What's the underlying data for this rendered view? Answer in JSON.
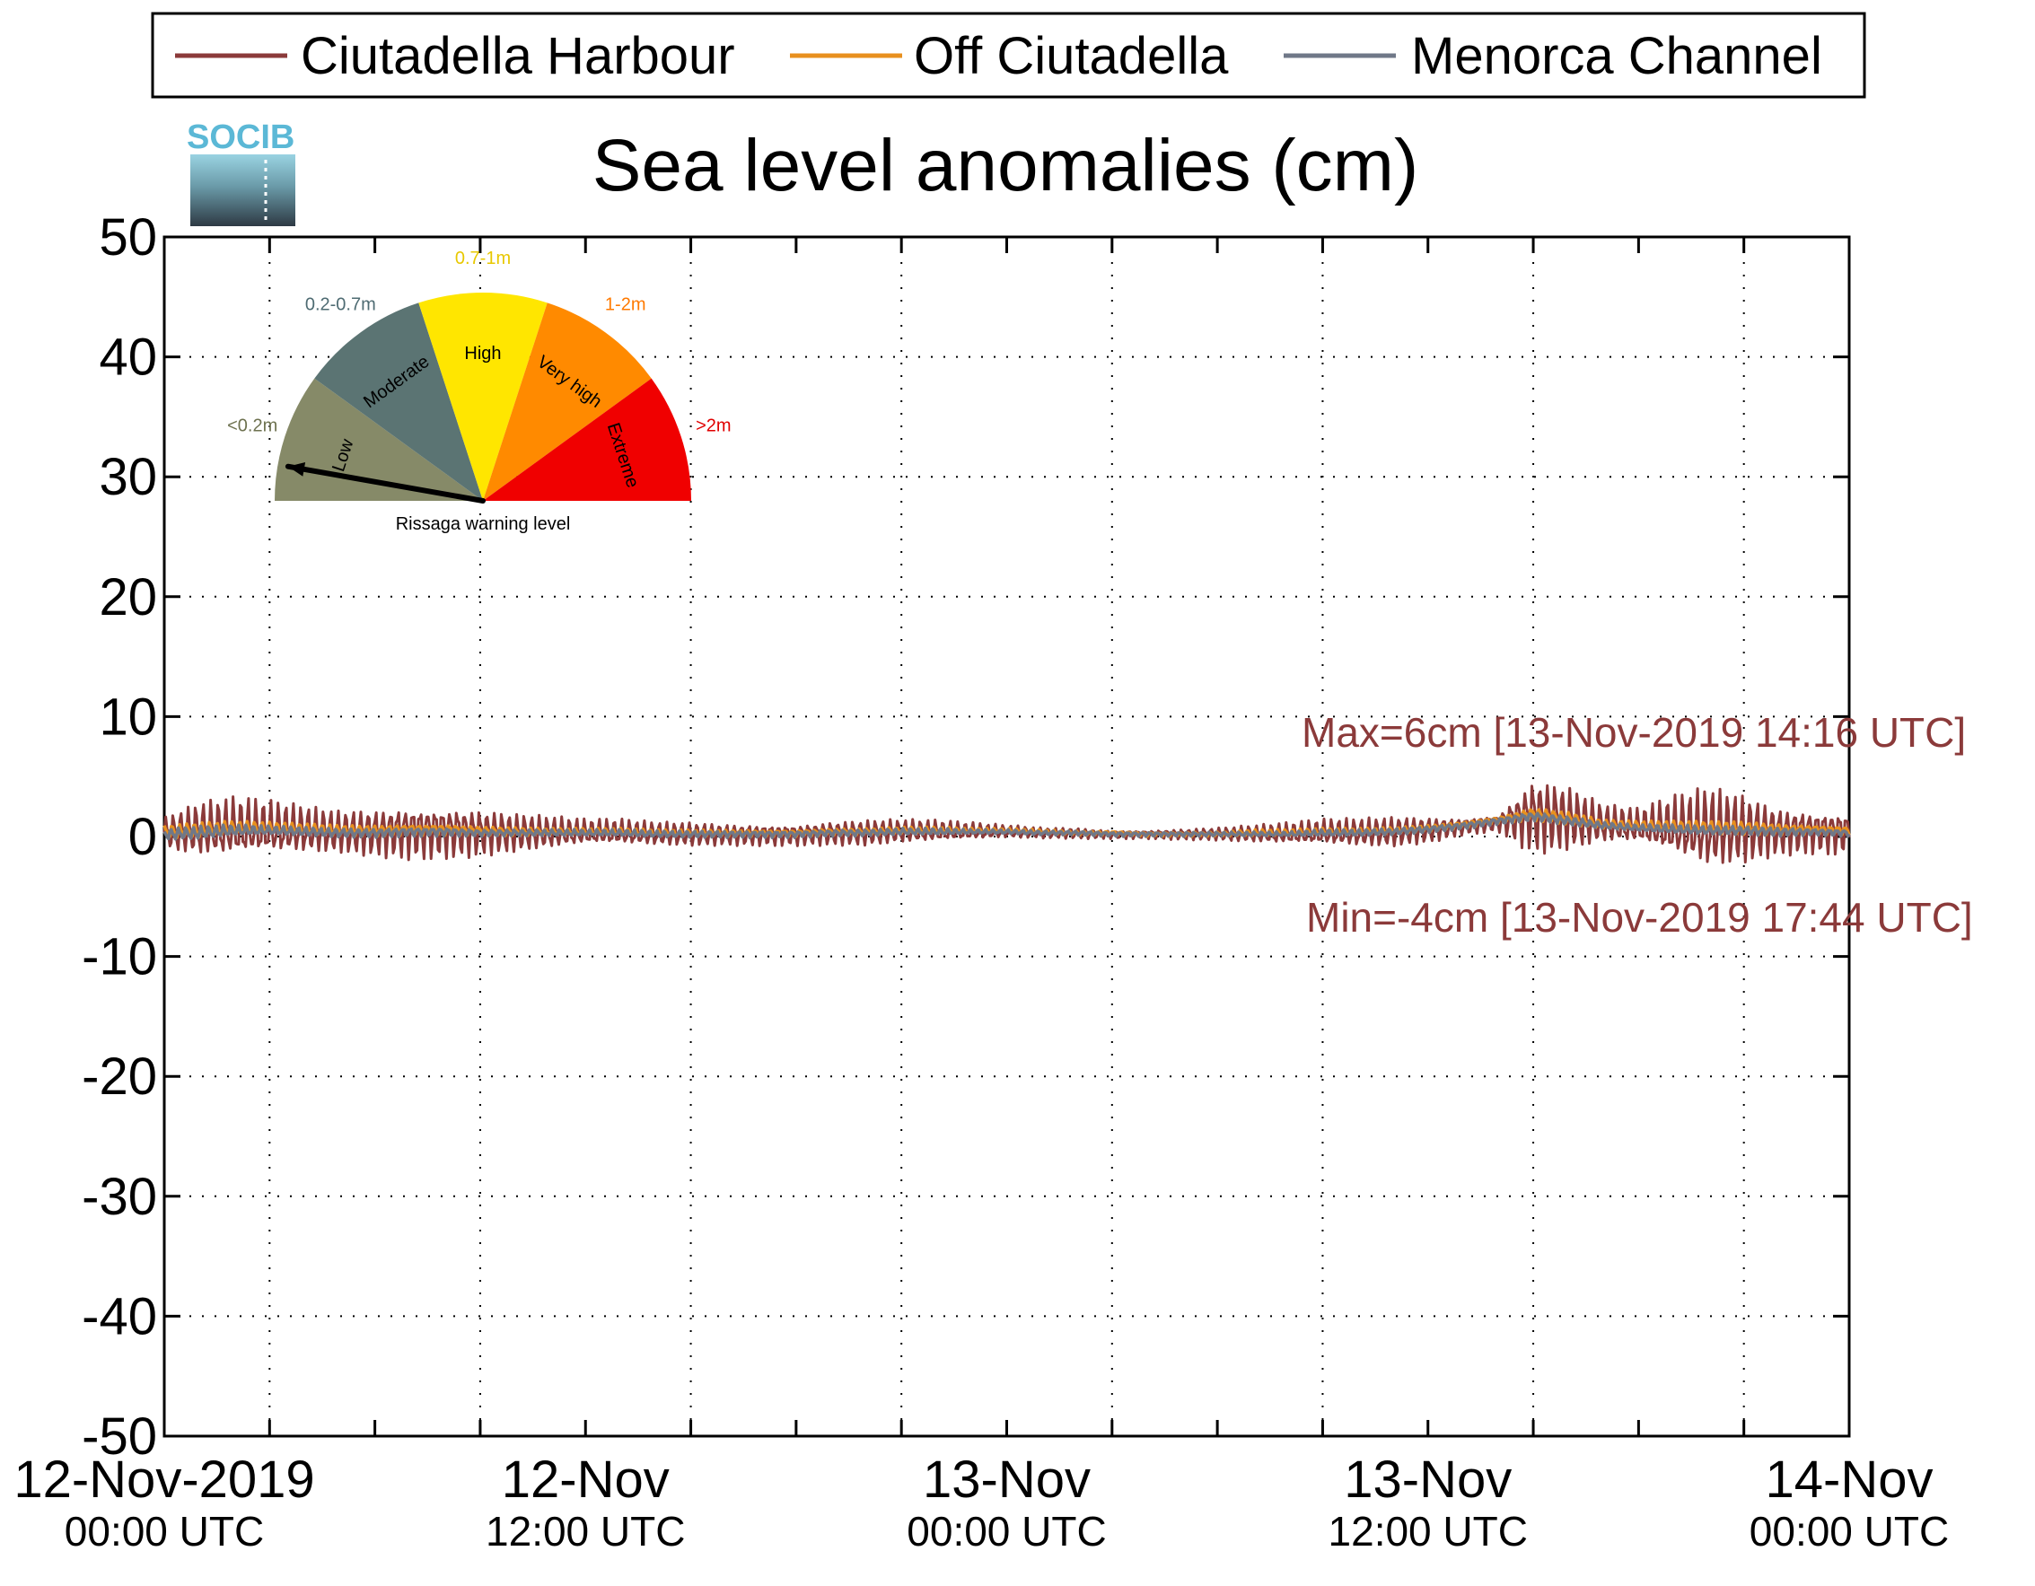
{
  "title": "Sea level anomalies (cm)",
  "legend": {
    "items": [
      {
        "label": "Ciutadella Harbour",
        "color": "#8B3A3A"
      },
      {
        "label": "Off Ciutadella",
        "color": "#E8901E"
      },
      {
        "label": "Menorca Channel",
        "color": "#707888"
      }
    ]
  },
  "logo": {
    "text": "SOCIB"
  },
  "gauge": {
    "caption": "Rissaga warning level",
    "current_level": "Low",
    "segments": [
      {
        "name": "Low",
        "range": "<0.2m",
        "color": "#868A68",
        "label_color": "#6E7250"
      },
      {
        "name": "Moderate",
        "range": "0.2-0.7m",
        "color": "#5B7473",
        "label_color": "#4E6B72"
      },
      {
        "name": "High",
        "range": "0.7-1m",
        "color": "#FFE600",
        "label_color": "#E8C800"
      },
      {
        "name": "Very high",
        "range": "1-2m",
        "color": "#FF8A00",
        "label_color": "#FF7A00"
      },
      {
        "name": "Extreme",
        "range": ">2m",
        "color": "#F00000",
        "label_color": "#E00000"
      }
    ]
  },
  "annotations": {
    "max": "Max=6cm [13-Nov-2019 14:16 UTC]",
    "min": "Min=-4cm [13-Nov-2019 17:44 UTC]"
  },
  "chart_data": {
    "type": "line",
    "title": "Sea level anomalies (cm)",
    "ylim": [
      -50,
      50
    ],
    "xlim_hours": [
      0,
      48
    ],
    "grid": true,
    "legend_position": "top",
    "y_ticks": [
      "50",
      "40",
      "30",
      "20",
      "10",
      "0",
      "-10",
      "-20",
      "-30",
      "-40",
      "-50"
    ],
    "x_ticks": [
      {
        "line1": "12-Nov-2019",
        "line2": "00:00 UTC"
      },
      {
        "line1": "12-Nov",
        "line2": "12:00 UTC"
      },
      {
        "line1": "13-Nov",
        "line2": "00:00 UTC"
      },
      {
        "line1": "13-Nov",
        "line2": "12:00 UTC"
      },
      {
        "line1": "14-Nov",
        "line2": "00:00 UTC"
      }
    ],
    "series": [
      {
        "name": "Ciutadella Harbour",
        "color": "#8B3A3A",
        "mean_hourly": [
          0.3,
          0.5,
          0.6,
          0.6,
          0.5,
          0.4,
          0.4,
          0.5,
          0.5,
          0.4,
          0.3,
          0.3,
          0.3,
          0.3,
          0.2,
          0.2,
          0.2,
          0.2,
          0.2,
          0.3,
          0.3,
          0.4,
          0.4,
          0.4,
          0.4,
          0.3,
          0.3,
          0.2,
          0.2,
          0.2,
          0.2,
          0.2,
          0.2,
          0.3,
          0.3,
          0.4,
          0.6,
          0.9,
          1.2,
          1.8,
          1.5,
          1.0,
          0.8,
          0.7,
          0.6,
          0.6,
          0.5,
          0.5,
          0.4
        ],
        "oscillation_amplitude_hourly": [
          1.5,
          2.5,
          2.8,
          2.5,
          2.2,
          2.0,
          2.2,
          2.5,
          2.4,
          2.2,
          1.8,
          1.5,
          1.2,
          1.2,
          1.1,
          1.1,
          1.0,
          1.0,
          1.0,
          1.1,
          1.2,
          1.1,
          1.0,
          0.8,
          0.6,
          0.5,
          0.5,
          0.4,
          0.4,
          0.5,
          0.6,
          0.8,
          1.0,
          1.2,
          1.3,
          1.4,
          1.2,
          0.8,
          0.8,
          3.5,
          3.0,
          1.8,
          1.6,
          2.8,
          3.8,
          3.2,
          2.2,
          2.0,
          2.0
        ]
      },
      {
        "name": "Off Ciutadella",
        "color": "#E8901E",
        "mean_hourly": [
          0.4,
          0.5,
          0.7,
          0.7,
          0.6,
          0.5,
          0.5,
          0.6,
          0.6,
          0.5,
          0.4,
          0.4,
          0.4,
          0.4,
          0.3,
          0.3,
          0.3,
          0.3,
          0.3,
          0.4,
          0.4,
          0.5,
          0.5,
          0.5,
          0.5,
          0.4,
          0.3,
          0.3,
          0.2,
          0.2,
          0.2,
          0.3,
          0.3,
          0.4,
          0.4,
          0.5,
          0.7,
          1.0,
          1.4,
          1.9,
          1.5,
          1.0,
          0.9,
          0.8,
          0.7,
          0.7,
          0.6,
          0.6,
          0.5
        ],
        "oscillation_amplitude_hourly": [
          0.6,
          0.7,
          0.6,
          0.5,
          0.5,
          0.5,
          0.5,
          0.5,
          0.5,
          0.4,
          0.4,
          0.3,
          0.3,
          0.3,
          0.3,
          0.3,
          0.3,
          0.3,
          0.3,
          0.3,
          0.3,
          0.3,
          0.3,
          0.2,
          0.2,
          0.2,
          0.2,
          0.2,
          0.2,
          0.2,
          0.2,
          0.3,
          0.3,
          0.3,
          0.3,
          0.3,
          0.3,
          0.3,
          0.3,
          0.6,
          0.6,
          0.4,
          0.4,
          0.5,
          0.6,
          0.6,
          0.5,
          0.4,
          0.4
        ]
      },
      {
        "name": "Menorca Channel",
        "color": "#707888",
        "mean_hourly": [
          0.2,
          0.3,
          0.5,
          0.5,
          0.4,
          0.3,
          0.3,
          0.4,
          0.4,
          0.3,
          0.3,
          0.3,
          0.3,
          0.3,
          0.2,
          0.2,
          0.2,
          0.2,
          0.2,
          0.3,
          0.3,
          0.4,
          0.4,
          0.4,
          0.4,
          0.3,
          0.3,
          0.2,
          0.2,
          0.2,
          0.2,
          0.2,
          0.2,
          0.3,
          0.3,
          0.4,
          0.6,
          0.9,
          1.3,
          1.7,
          1.3,
          0.9,
          0.7,
          0.6,
          0.5,
          0.5,
          0.4,
          0.4,
          0.3
        ],
        "oscillation_amplitude_hourly": [
          0.5,
          0.6,
          0.5,
          0.4,
          0.4,
          0.4,
          0.4,
          0.4,
          0.4,
          0.3,
          0.3,
          0.3,
          0.3,
          0.3,
          0.3,
          0.3,
          0.3,
          0.3,
          0.3,
          0.3,
          0.3,
          0.3,
          0.3,
          0.2,
          0.2,
          0.2,
          0.2,
          0.2,
          0.2,
          0.2,
          0.2,
          0.2,
          0.2,
          0.3,
          0.3,
          0.3,
          0.3,
          0.3,
          0.3,
          0.4,
          0.4,
          0.3,
          0.3,
          0.4,
          0.4,
          0.4,
          0.4,
          0.3,
          0.3
        ]
      }
    ]
  }
}
